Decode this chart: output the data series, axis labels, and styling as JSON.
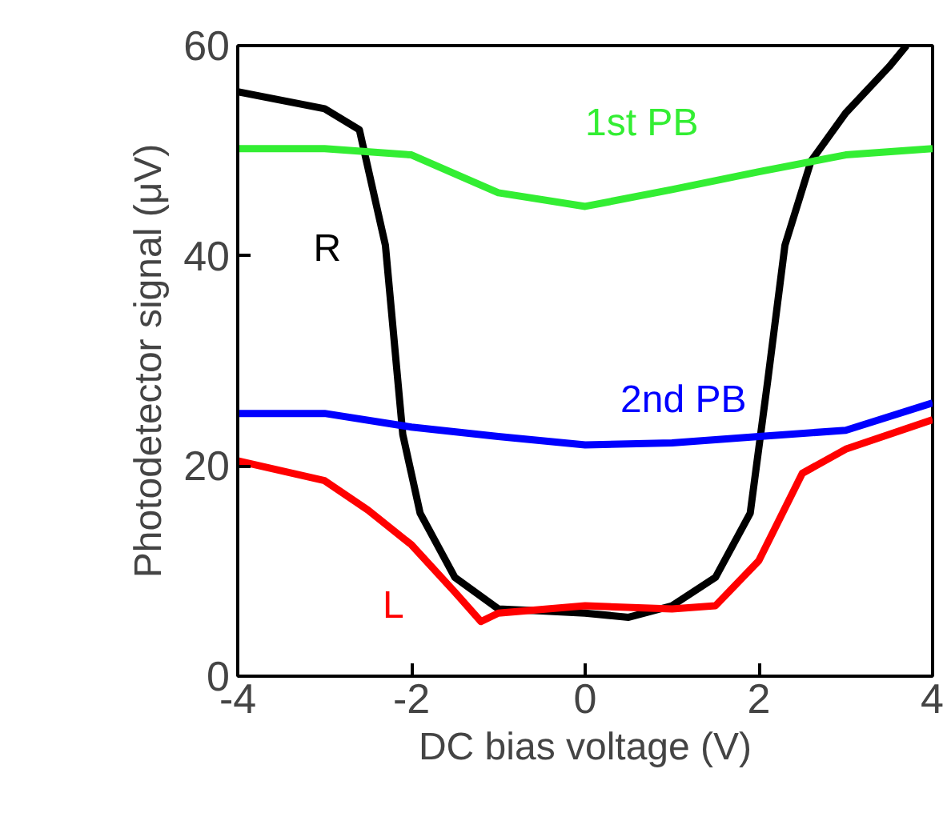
{
  "chart_data": {
    "type": "line",
    "xlabel": "DC bias voltage (V)",
    "ylabel": "Photodetector signal (μV)",
    "xlim": [
      -4,
      4
    ],
    "ylim": [
      0,
      60
    ],
    "xticks": [
      -4,
      -2,
      0,
      2,
      4
    ],
    "yticks": [
      0,
      20,
      40,
      60
    ],
    "grid": false,
    "line_style": "solid",
    "marker": "none",
    "x": [
      -4,
      -3,
      -2.6,
      -2.3,
      -2.1,
      -1.9,
      -1.5,
      -1,
      -0.5,
      0,
      0.5,
      1,
      1.5,
      1.9,
      2.1,
      2.3,
      2.6,
      3,
      3.5,
      3.7
    ],
    "series": [
      {
        "name": "R",
        "color": "#000000",
        "values": [
          55.6,
          54,
          52,
          41,
          23,
          15.5,
          9.4,
          6.4,
          6.2,
          6,
          5.6,
          6.7,
          9.4,
          15.5,
          28,
          41,
          49,
          53.6,
          58,
          60
        ]
      },
      {
        "name": "1st PB",
        "color": "#33ee33",
        "x": [
          -4,
          -3,
          -2,
          -1,
          0,
          1,
          2,
          3,
          4
        ],
        "values": [
          50.2,
          50.2,
          49.6,
          46,
          44.7,
          46.3,
          48,
          49.6,
          50.2
        ]
      },
      {
        "name": "2nd PB",
        "color": "#0000ff",
        "x": [
          -4,
          -3,
          -2,
          -1,
          0,
          1,
          2,
          3,
          4
        ],
        "values": [
          25,
          25,
          23.7,
          22.8,
          22,
          22.2,
          22.8,
          23.4,
          26
        ]
      },
      {
        "name": "L",
        "color": "#ff0000",
        "x": [
          -4,
          -3,
          -2.5,
          -2,
          -1.5,
          -1.2,
          -1,
          0,
          1,
          1.5,
          2,
          2.5,
          3,
          4
        ],
        "values": [
          20.5,
          18.6,
          15.8,
          12.5,
          8,
          5.2,
          6,
          6.7,
          6.4,
          6.7,
          11,
          19.3,
          21.6,
          24.4
        ]
      }
    ]
  }
}
